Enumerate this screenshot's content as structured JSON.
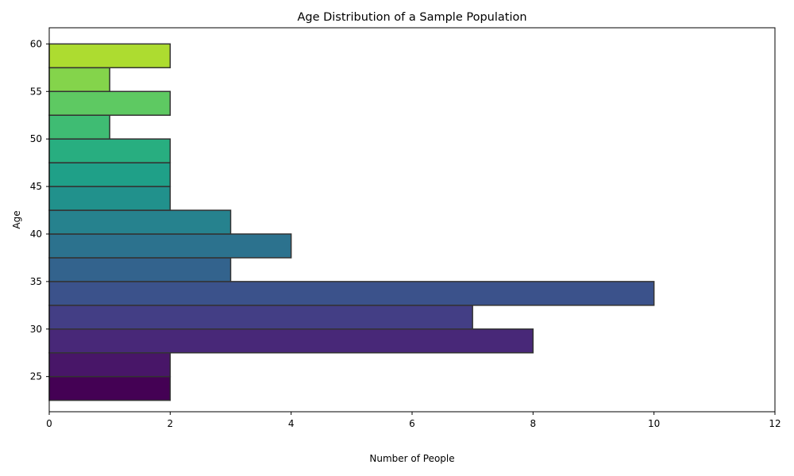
{
  "chart_data": {
    "type": "bar",
    "orientation": "horizontal",
    "title": "Age Distribution of a Sample Population",
    "xlabel": "Number of People",
    "ylabel": "Age",
    "xlim": [
      0,
      12
    ],
    "ylim": [
      21.3,
      61.7
    ],
    "x_ticks": [
      0,
      2,
      4,
      6,
      8,
      10,
      12
    ],
    "y_ticks": [
      25,
      30,
      35,
      40,
      45,
      50,
      55,
      60
    ],
    "bin_width": 2.5,
    "bins": [
      {
        "age": 25.0,
        "count": 2,
        "color": "#440154"
      },
      {
        "age": 27.5,
        "count": 2,
        "color": "#481668"
      },
      {
        "age": 30.0,
        "count": 8,
        "color": "#482878"
      },
      {
        "age": 32.5,
        "count": 7,
        "color": "#433e85"
      },
      {
        "age": 35.0,
        "count": 10,
        "color": "#3b528b"
      },
      {
        "age": 37.5,
        "count": 3,
        "color": "#33638d"
      },
      {
        "age": 40.0,
        "count": 4,
        "color": "#2c728e"
      },
      {
        "age": 42.5,
        "count": 3,
        "color": "#26828e"
      },
      {
        "age": 45.0,
        "count": 2,
        "color": "#21918c"
      },
      {
        "age": 47.5,
        "count": 2,
        "color": "#1fa088"
      },
      {
        "age": 50.0,
        "count": 2,
        "color": "#28ae80"
      },
      {
        "age": 52.5,
        "count": 1,
        "color": "#3fbc73"
      },
      {
        "age": 55.0,
        "count": 2,
        "color": "#5ec962"
      },
      {
        "age": 57.5,
        "count": 1,
        "color": "#84d44b"
      },
      {
        "age": 60.0,
        "count": 2,
        "color": "#addc30"
      }
    ],
    "bar_edge_color": "#333333",
    "grid": false,
    "legend": "none"
  }
}
